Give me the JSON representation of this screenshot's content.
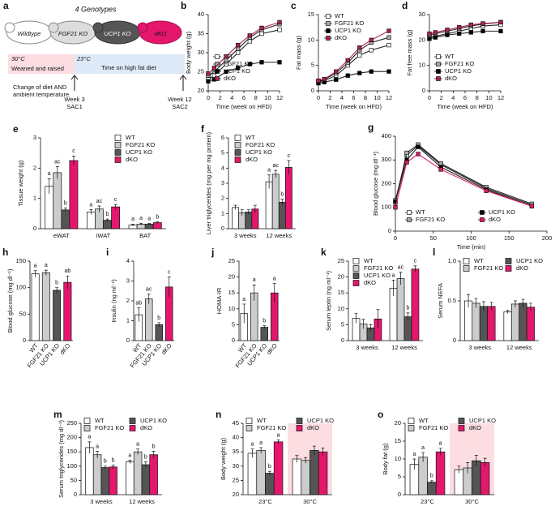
{
  "diagram": {
    "panel": "a",
    "title": "4 Genotypes",
    "mice": [
      "Wildtype",
      "FGF21 KO",
      "UCP1 KO",
      "dKO"
    ],
    "temp1": "30°C",
    "phase1": "Weaned and raised",
    "temp2": "23°C",
    "phase2": "Time on high fat diet",
    "change_note": [
      "Change of diet AND",
      "ambient temperature"
    ],
    "week1": "Week 3",
    "sac1": "SAC1",
    "week2": "Week 12",
    "sac2": "SAC2"
  },
  "chart_data": [
    {
      "type": "line",
      "panel": "b",
      "y_label": "Body weight (g)",
      "x_label": "Time (week on HFD)",
      "x": [
        0,
        1,
        3,
        5,
        7,
        9,
        12
      ],
      "xlim": [
        0,
        12
      ],
      "xticks": [
        0,
        2,
        4,
        6,
        8,
        10,
        12
      ],
      "ylim": [
        20,
        40
      ],
      "yticks": [
        20,
        25,
        30,
        35,
        40
      ],
      "series": [
        {
          "name": "WT",
          "color": "#ffffff",
          "values": [
            23,
            24,
            27,
            30,
            33,
            35,
            36
          ]
        },
        {
          "name": "FGF21 KO",
          "color": "#aaaaaa",
          "values": [
            24,
            25,
            28,
            31,
            34,
            36,
            37.5
          ]
        },
        {
          "name": "UCP1 KO",
          "color": "#000000",
          "values": [
            22.5,
            23,
            25,
            26,
            27,
            27.5,
            27.5
          ]
        },
        {
          "name": "dKO",
          "color": "#b0234f",
          "values": [
            24.5,
            26,
            29,
            32,
            34.5,
            36.5,
            38
          ]
        }
      ]
    },
    {
      "type": "line",
      "panel": "c",
      "y_label": "Fat mass (g)",
      "x_label": "Time (week on HFD)",
      "x": [
        0,
        1,
        3,
        5,
        7,
        9,
        12
      ],
      "xlim": [
        0,
        12
      ],
      "xticks": [
        0,
        2,
        4,
        6,
        8,
        10,
        12
      ],
      "ylim": [
        0,
        15
      ],
      "yticks": [
        0,
        5,
        10,
        15
      ],
      "series": [
        {
          "name": "WT",
          "color": "#ffffff",
          "values": [
            1.8,
            2,
            3,
            5,
            7,
            8,
            9
          ]
        },
        {
          "name": "FGF21 KO",
          "color": "#aaaaaa",
          "values": [
            1.9,
            2.2,
            3.5,
            5.5,
            8,
            9.5,
            10.5
          ]
        },
        {
          "name": "UCP1 KO",
          "color": "#000000",
          "values": [
            1.5,
            1.7,
            2.2,
            3,
            3.5,
            3.8,
            3.8
          ]
        },
        {
          "name": "dKO",
          "color": "#b0234f",
          "values": [
            2,
            2.3,
            3.8,
            6,
            8.5,
            10,
            11.8
          ]
        }
      ]
    },
    {
      "type": "line",
      "panel": "d",
      "y_label": "Fat free mass (g)",
      "x_label": "Time (week on HFD)",
      "x": [
        0,
        1,
        3,
        5,
        7,
        9,
        12
      ],
      "xlim": [
        0,
        12
      ],
      "xticks": [
        0,
        2,
        4,
        6,
        8,
        10,
        12
      ],
      "ylim": [
        0,
        30
      ],
      "yticks": [
        0,
        10,
        20,
        30
      ],
      "series": [
        {
          "name": "WT",
          "color": "#ffffff",
          "values": [
            21,
            21.5,
            22.5,
            23.5,
            24.5,
            25.5,
            26
          ]
        },
        {
          "name": "FGF21 KO",
          "color": "#aaaaaa",
          "values": [
            22,
            22.5,
            23.5,
            24.5,
            25.5,
            26.3,
            27
          ]
        },
        {
          "name": "UCP1 KO",
          "color": "#000000",
          "values": [
            20.5,
            21,
            22,
            22.5,
            23,
            23.5,
            23.5
          ]
        },
        {
          "name": "dKO",
          "color": "#b0234f",
          "values": [
            22.5,
            23,
            24,
            25,
            26,
            26.5,
            27
          ]
        }
      ]
    },
    {
      "type": "bar",
      "panel": "e",
      "y_label": "Tissue weight (g)",
      "categories": [
        "eWAT",
        "iWAT",
        "BAT"
      ],
      "ylim": [
        0,
        3
      ],
      "yticks": [
        0,
        1,
        2,
        3
      ],
      "series": [
        {
          "name": "WT",
          "color": "#ffffff",
          "values": [
            1.4,
            0.55,
            0.12
          ],
          "errors": [
            0.25,
            0.08,
            0.03
          ],
          "letters": [
            "a",
            "a",
            "a"
          ]
        },
        {
          "name": "FGF21 KO",
          "color": "#cccccc",
          "values": [
            1.85,
            0.65,
            0.15
          ],
          "errors": [
            0.2,
            0.1,
            0.03
          ],
          "letters": [
            "ac",
            "ac",
            "a"
          ]
        },
        {
          "name": "UCP1 KO",
          "color": "#555555",
          "values": [
            0.62,
            0.28,
            0.15
          ],
          "errors": [
            0.06,
            0.04,
            0.02
          ],
          "letters": [
            "b",
            "b",
            "a"
          ]
        },
        {
          "name": "dKO",
          "color": "#e5176d",
          "values": [
            2.25,
            0.72,
            0.2
          ],
          "errors": [
            0.15,
            0.08,
            0.03
          ],
          "letters": [
            "c",
            "c",
            "b"
          ]
        }
      ]
    },
    {
      "type": "bar",
      "panel": "f",
      "y_label": "Liver triglycerides (mg per mg protein)",
      "categories": [
        "3 weeks",
        "12 weeks"
      ],
      "ylim": [
        0,
        6
      ],
      "yticks": [
        0,
        1,
        2,
        3,
        4,
        5,
        6
      ],
      "series": [
        {
          "name": "WT",
          "color": "#ffffff",
          "values": [
            1.4,
            3.1
          ],
          "errors": [
            0.15,
            0.45
          ],
          "letters": [
            null,
            "a"
          ]
        },
        {
          "name": "FGF21 KO",
          "color": "#cccccc",
          "values": [
            1.05,
            3.6
          ],
          "errors": [
            0.2,
            0.25
          ],
          "letters": [
            null,
            "ac"
          ]
        },
        {
          "name": "UCP1 KO",
          "color": "#555555",
          "values": [
            1.1,
            1.75
          ],
          "errors": [
            0.15,
            0.2
          ],
          "letters": [
            null,
            "b"
          ]
        },
        {
          "name": "dKO",
          "color": "#e5176d",
          "values": [
            1.3,
            4.05
          ],
          "errors": [
            0.25,
            0.45
          ],
          "letters": [
            null,
            "c"
          ]
        }
      ]
    },
    {
      "type": "line",
      "panel": "g",
      "y_label": "Blood glucose (mg dl⁻¹)",
      "x_label": "Time (min)",
      "x": [
        0,
        15,
        30,
        60,
        120,
        180
      ],
      "xlim": [
        0,
        200
      ],
      "xticks": [
        0,
        50,
        100,
        150,
        200
      ],
      "ylim": [
        0,
        400
      ],
      "yticks": [
        0,
        100,
        200,
        300,
        400
      ],
      "series": [
        {
          "name": "WT",
          "color": "#ffffff",
          "values": [
            130,
            320,
            360,
            280,
            180,
            110
          ]
        },
        {
          "name": "FGF21 KO",
          "color": "#aaaaaa",
          "values": [
            120,
            330,
            365,
            285,
            185,
            115
          ]
        },
        {
          "name": "UCP1 KO",
          "color": "#000000",
          "values": [
            125,
            300,
            355,
            270,
            175,
            105
          ]
        },
        {
          "name": "dKO",
          "color": "#e5176d",
          "values": [
            100,
            290,
            325,
            260,
            170,
            105
          ]
        }
      ]
    },
    {
      "type": "bar",
      "panel": "h",
      "y_label": "Blood glucose (mg dl⁻¹)",
      "categories": [
        "WT",
        "FGF21 KO",
        "UCP1 KO",
        "dKO"
      ],
      "ylim": [
        0,
        150
      ],
      "yticks": [
        0,
        50,
        100,
        150
      ],
      "values": [
        126,
        128,
        95,
        110
      ],
      "errors": [
        6,
        5,
        5,
        12
      ],
      "letters": [
        "a",
        "a",
        "b",
        "ab"
      ],
      "colors": [
        "#ffffff",
        "#cccccc",
        "#555555",
        "#e5176d"
      ]
    },
    {
      "type": "bar",
      "panel": "i",
      "y_label": "Insulin (ng ml⁻¹)",
      "categories": [
        "WT",
        "FGF21 KO",
        "UCP1 KO",
        "dKO"
      ],
      "ylim": [
        0,
        4
      ],
      "yticks": [
        0,
        1,
        2,
        3,
        4
      ],
      "values": [
        1.3,
        2.1,
        0.8,
        2.7
      ],
      "errors": [
        0.35,
        0.25,
        0.1,
        0.5
      ],
      "letters": [
        "ab",
        "ac",
        "b",
        "c"
      ],
      "colors": [
        "#ffffff",
        "#cccccc",
        "#555555",
        "#e5176d"
      ]
    },
    {
      "type": "bar",
      "panel": "j",
      "y_label": "HOMA-IR",
      "categories": [
        "WT",
        "FGF21 KO",
        "UCP1 KO",
        "dKO"
      ],
      "ylim": [
        0,
        25
      ],
      "yticks": [
        0,
        5,
        10,
        15,
        20,
        25
      ],
      "values": [
        8.5,
        15,
        4.2,
        15
      ],
      "errors": [
        3,
        2.5,
        0.5,
        3
      ],
      "letters": [
        "a",
        "a",
        "b",
        "a"
      ],
      "colors": [
        "#ffffff",
        "#cccccc",
        "#555555",
        "#e5176d"
      ]
    },
    {
      "type": "bar",
      "panel": "k",
      "y_label": "Serum leptin (ng ml⁻¹)",
      "categories": [
        "3 weeks",
        "12 weeks"
      ],
      "ylim": [
        0,
        25
      ],
      "yticks": [
        0,
        5,
        10,
        15,
        20,
        25
      ],
      "series": [
        {
          "name": "WT",
          "color": "#ffffff",
          "values": [
            7,
            16.5
          ],
          "errors": [
            1.5,
            2.5
          ],
          "letters": [
            null,
            "a"
          ]
        },
        {
          "name": "FGF21 KO",
          "color": "#cccccc",
          "values": [
            5.2,
            19.5
          ],
          "errors": [
            1.5,
            2
          ],
          "letters": [
            null,
            "ac"
          ]
        },
        {
          "name": "UCP1 KO",
          "color": "#555555",
          "values": [
            4,
            7.5
          ],
          "errors": [
            1,
            1.2
          ],
          "letters": [
            null,
            "b"
          ]
        },
        {
          "name": "dKO",
          "color": "#e5176d",
          "values": [
            6.8,
            22.5
          ],
          "errors": [
            3,
            1
          ],
          "letters": [
            null,
            "c"
          ]
        }
      ]
    },
    {
      "type": "bar",
      "panel": "l",
      "y_label": "Serum NEFA",
      "categories": [
        "3 weeks",
        "12 weeks"
      ],
      "ylim": [
        0,
        1
      ],
      "yticks": [
        0,
        0.5,
        {
          "value": 1,
          "label": "1.0"
        }
      ],
      "series": [
        {
          "name": "WT",
          "color": "#ffffff",
          "values": [
            0.5,
            0.36
          ],
          "errors": [
            0.08,
            0.02
          ]
        },
        {
          "name": "FGF21 KO",
          "color": "#cccccc",
          "values": [
            0.47,
            0.46
          ],
          "errors": [
            0.06,
            0.04
          ]
        },
        {
          "name": "UCP1 KO",
          "color": "#555555",
          "values": [
            0.43,
            0.47
          ],
          "errors": [
            0.06,
            0.05
          ]
        },
        {
          "name": "dKO",
          "color": "#e5176d",
          "values": [
            0.43,
            0.42
          ],
          "errors": [
            0.05,
            0.05
          ]
        }
      ]
    },
    {
      "type": "bar",
      "panel": "m",
      "y_label": "Serum triglycerides (mg dl⁻¹)",
      "categories": [
        "3 weeks",
        "12 weeks"
      ],
      "ylim": [
        0,
        250
      ],
      "yticks": [
        0,
        50,
        100,
        150,
        200,
        250
      ],
      "series": [
        {
          "name": "WT",
          "color": "#ffffff",
          "values": [
            165,
            115
          ],
          "errors": [
            20,
            6
          ],
          "letters": [
            "a",
            "a"
          ]
        },
        {
          "name": "FGF21 KO",
          "color": "#cccccc",
          "values": [
            140,
            150
          ],
          "errors": [
            12,
            10
          ],
          "letters": [
            "a",
            "a"
          ]
        },
        {
          "name": "UCP1 KO",
          "color": "#555555",
          "values": [
            95,
            105
          ],
          "errors": [
            5,
            10
          ],
          "letters": [
            "b",
            "b"
          ]
        },
        {
          "name": "dKO",
          "color": "#e5176d",
          "values": [
            97,
            140
          ],
          "errors": [
            6,
            12
          ],
          "letters": [
            "b",
            "b"
          ]
        }
      ]
    },
    {
      "type": "bar",
      "panel": "n",
      "y_label": "Body weight (g)",
      "categories": [
        "23°C",
        "30°C"
      ],
      "ylim": [
        20,
        45
      ],
      "yticks": [
        20,
        25,
        30,
        35,
        40,
        45
      ],
      "shaded_category": 1,
      "shade_color": "#fbdde2",
      "series": [
        {
          "name": "WT",
          "color": "#ffffff",
          "values": [
            34.5,
            32.5
          ],
          "errors": [
            1.5,
            1.2
          ],
          "letters": [
            "a",
            null
          ]
        },
        {
          "name": "FGF21 KO",
          "color": "#cccccc",
          "values": [
            35.5,
            32
          ],
          "errors": [
            1,
            1
          ],
          "letters": [
            "a",
            null
          ]
        },
        {
          "name": "UCP1 KO",
          "color": "#555555",
          "values": [
            27.5,
            35.5
          ],
          "errors": [
            0.7,
            1.5
          ],
          "letters": [
            "b",
            null
          ]
        },
        {
          "name": "dKO",
          "color": "#e5176d",
          "values": [
            38.5,
            35
          ],
          "errors": [
            0.7,
            1.3
          ],
          "letters": [
            "a",
            null
          ]
        }
      ]
    },
    {
      "type": "bar",
      "panel": "o",
      "y_label": "Body fat (g)",
      "categories": [
        "23°C",
        "30°C"
      ],
      "ylim": [
        0,
        20
      ],
      "yticks": [
        0,
        5,
        10,
        15,
        20
      ],
      "shaded_category": 1,
      "shade_color": "#fbdde2",
      "series": [
        {
          "name": "WT",
          "color": "#ffffff",
          "values": [
            8.5,
            7
          ],
          "errors": [
            1.5,
            1
          ],
          "letters": [
            "a",
            null
          ]
        },
        {
          "name": "FGF21 KO",
          "color": "#cccccc",
          "values": [
            10.5,
            7.5
          ],
          "errors": [
            1.3,
            1.5
          ],
          "letters": [
            "a",
            null
          ]
        },
        {
          "name": "UCP1 KO",
          "color": "#555555",
          "values": [
            3.5,
            9.5
          ],
          "errors": [
            0.4,
            1.5
          ],
          "letters": [
            "b",
            null
          ]
        },
        {
          "name": "dKO",
          "color": "#e5176d",
          "values": [
            12,
            9
          ],
          "errors": [
            1,
            1.2
          ],
          "letters": [
            "a",
            null
          ]
        }
      ]
    }
  ]
}
